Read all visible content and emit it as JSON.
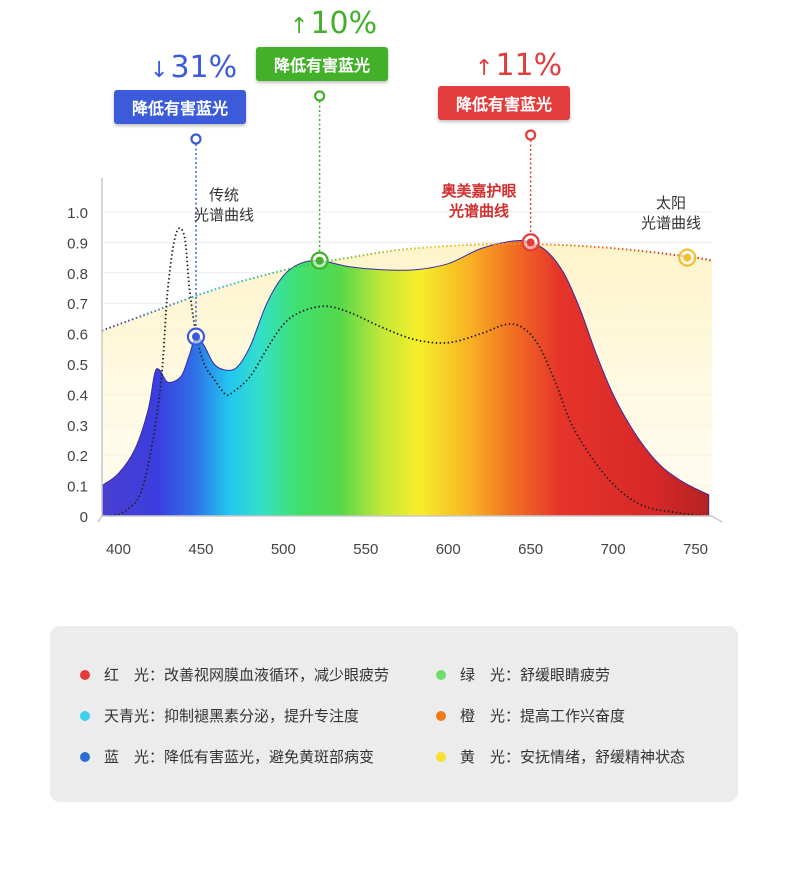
{
  "chart_data": {
    "type": "area",
    "x_ticks": [
      400,
      450,
      500,
      550,
      600,
      650,
      700,
      750
    ],
    "y_ticks": [
      "0",
      "0.1",
      "0.2",
      "0.3",
      "0.4",
      "0.5",
      "0.6",
      "0.7",
      "0.8",
      "0.9",
      "1.0"
    ],
    "xlim": [
      390,
      760
    ],
    "ylim": [
      0,
      1.0
    ],
    "grid": true,
    "series": [
      {
        "name": "奥美嘉护眼光谱曲线",
        "style": "filled spectrum gradient",
        "x": [
          390,
          400,
          410,
          418,
          422,
          425,
          430,
          438,
          443,
          447,
          452,
          458,
          465,
          472,
          480,
          490,
          500,
          510,
          522,
          540,
          560,
          580,
          600,
          620,
          640,
          650,
          660,
          670,
          680,
          690,
          700,
          710,
          720,
          730,
          740,
          750,
          758
        ],
        "y": [
          0.1,
          0.14,
          0.22,
          0.35,
          0.47,
          0.48,
          0.44,
          0.46,
          0.53,
          0.59,
          0.56,
          0.5,
          0.48,
          0.49,
          0.56,
          0.7,
          0.79,
          0.83,
          0.84,
          0.82,
          0.81,
          0.81,
          0.83,
          0.88,
          0.905,
          0.9,
          0.87,
          0.8,
          0.68,
          0.53,
          0.4,
          0.3,
          0.22,
          0.16,
          0.12,
          0.09,
          0.07
        ]
      },
      {
        "name": "传统光谱曲线",
        "style": "dotted black",
        "x": [
          395,
          405,
          415,
          425,
          430,
          435,
          440,
          443,
          447,
          452,
          458,
          465,
          470,
          480,
          490,
          500,
          510,
          525,
          540,
          560,
          580,
          600,
          620,
          635,
          645,
          655,
          665,
          675,
          690,
          705,
          720,
          740,
          755
        ],
        "y": [
          0.0,
          0.02,
          0.1,
          0.4,
          0.75,
          0.93,
          0.92,
          0.75,
          0.6,
          0.5,
          0.45,
          0.4,
          0.41,
          0.46,
          0.55,
          0.63,
          0.67,
          0.69,
          0.67,
          0.62,
          0.58,
          0.57,
          0.6,
          0.63,
          0.62,
          0.56,
          0.44,
          0.3,
          0.17,
          0.08,
          0.03,
          0.01,
          0.0
        ]
      },
      {
        "name": "太阳光谱曲线",
        "style": "dotted rainbow with pale yellow fill",
        "x": [
          390,
          420,
          450,
          480,
          510,
          540,
          570,
          600,
          630,
          660,
          690,
          720,
          750,
          760
        ],
        "y": [
          0.61,
          0.67,
          0.73,
          0.78,
          0.82,
          0.85,
          0.875,
          0.888,
          0.895,
          0.893,
          0.885,
          0.87,
          0.85,
          0.84
        ]
      }
    ],
    "markers": [
      {
        "x": 447,
        "y": 0.59,
        "color": "#3b5bdb"
      },
      {
        "x": 522,
        "y": 0.84,
        "color": "#43b02a"
      },
      {
        "x": 650,
        "y": 0.9,
        "color": "#e23c3c"
      },
      {
        "x": 745,
        "y": 0.85,
        "color": "#f0c030"
      }
    ],
    "annotations": {
      "traditional": "传统\n光谱曲线",
      "aomeijia": "奥美嘉护眼\n光谱曲线",
      "sun": "太阳\n光谱曲线"
    }
  },
  "callouts": [
    {
      "pct": "31%",
      "arrow": "↓",
      "label": "降低有害蓝光",
      "color": "#3b5bdb"
    },
    {
      "pct": "10%",
      "arrow": "↑",
      "label": "降低有害蓝光",
      "color": "#43b02a"
    },
    {
      "pct": "11%",
      "arrow": "↑",
      "label": "降低有害蓝光",
      "color": "#e23c3c"
    }
  ],
  "legend": [
    {
      "color": "#e23c3c",
      "label": "红　光：改善视网膜血液循环，减少眼疲劳"
    },
    {
      "color": "#6ee06a",
      "label": "绿　光：舒缓眼睛疲劳"
    },
    {
      "color": "#3fd0f0",
      "label": "天青光：抑制褪黑素分泌，提升专注度"
    },
    {
      "color": "#f07a1a",
      "label": "橙　光：提高工作兴奋度"
    },
    {
      "color": "#2a6fd0",
      "label": "蓝　光：降低有害蓝光，避免黄斑部病变"
    },
    {
      "color": "#f7e030",
      "label": "黄　光：安抚情绪，舒缓精神状态"
    }
  ]
}
